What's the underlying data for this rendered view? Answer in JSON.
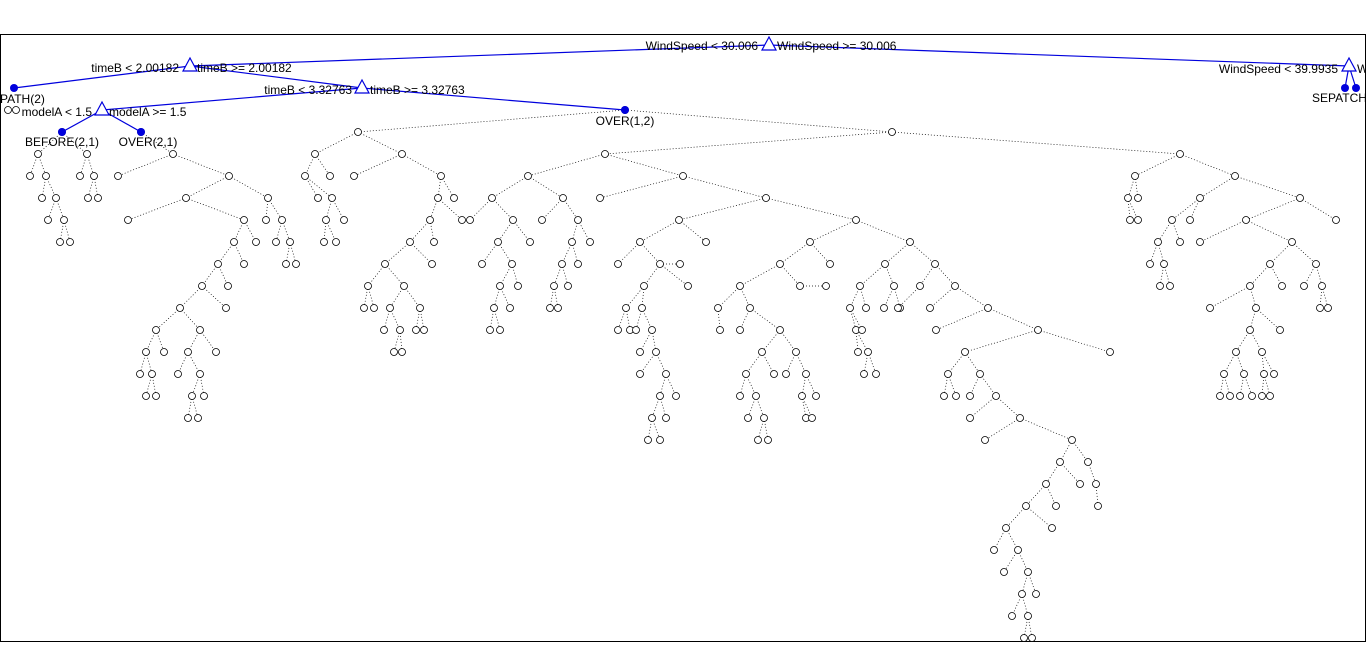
{
  "tree": {
    "blue_color": "#0000dd",
    "edge_color": "#000000",
    "splits": [
      {
        "left": "WindSpeed < 30.006",
        "right": "WindSpeed >= 30.006"
      },
      {
        "left": "timeB < 2.00182",
        "right": "timeB >= 2.00182"
      },
      {
        "left": "timeB < 3.32763",
        "right": "timeB >= 3.32763"
      },
      {
        "left": "modelA < 1.5",
        "right": "modelA >= 1.5"
      },
      {
        "left": "WindSpeed < 39.9935",
        "right": "W"
      }
    ],
    "leaves": {
      "path": "PATH(2)",
      "before": "BEFORE(2,1)",
      "over21": "OVER(2,1)",
      "over12": "OVER(1,2)",
      "right_leaf": "SEPATCHE"
    }
  }
}
